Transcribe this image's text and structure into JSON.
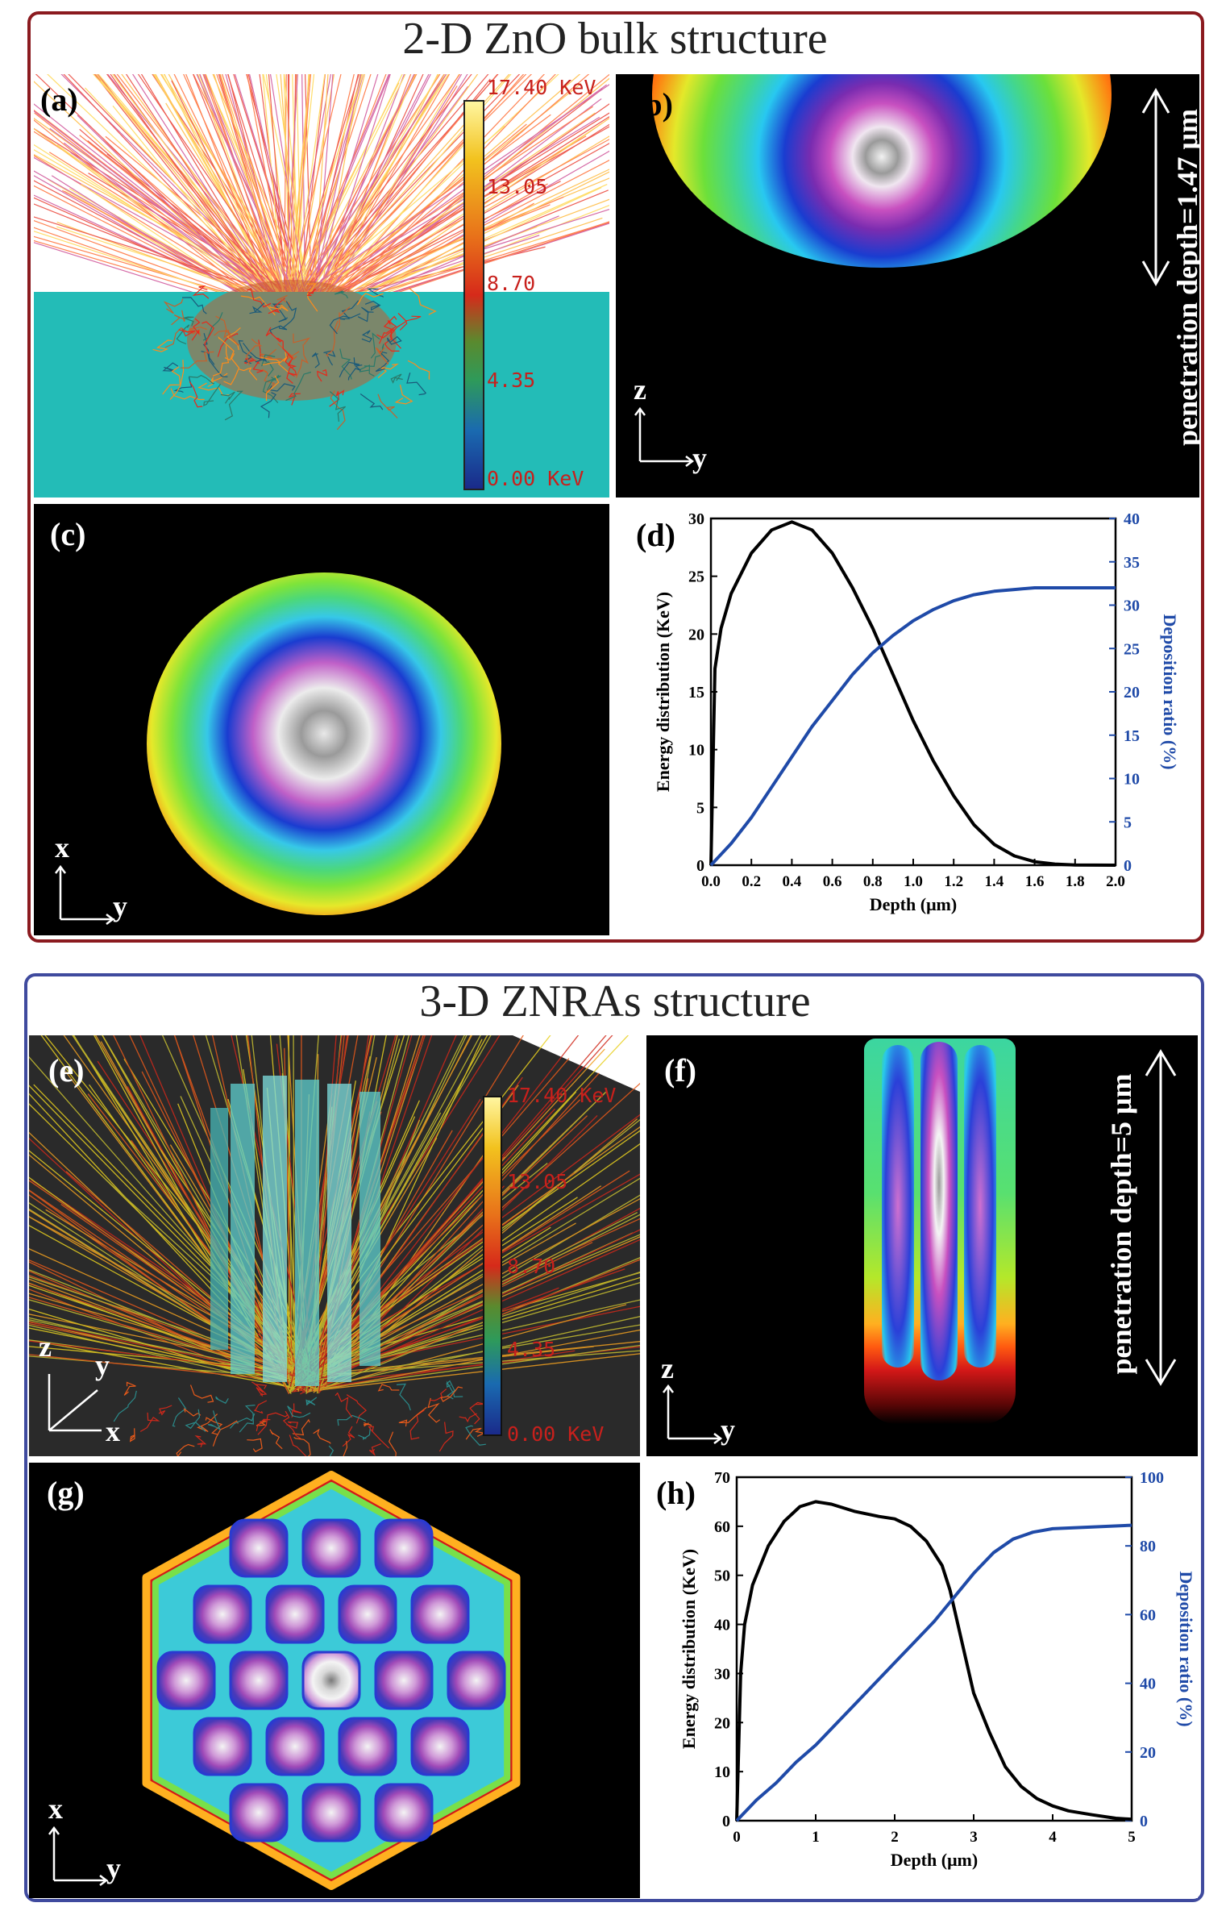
{
  "top": {
    "title": "2-D ZnO bulk structure",
    "frame_color": "#8b1a1f",
    "panels": {
      "a": "(a)",
      "b": "(b)",
      "c": "(c)",
      "d": "(d)"
    },
    "colorbar": [
      "17.40 KeV",
      "13.05",
      "8.70",
      "4.35",
      "0.00 KeV"
    ],
    "penetration": "penetration depth=1.47 μm",
    "axes": {
      "z": "z",
      "y": "y",
      "x": "x"
    }
  },
  "bottom": {
    "title": "3-D ZNRAs structure",
    "frame_color": "#3f4a9e",
    "panels": {
      "e": "(e)",
      "f": "(f)",
      "g": "(g)",
      "h": "(h)"
    },
    "colorbar": [
      "17.40 KeV",
      "13.05",
      "8.70",
      "4.35",
      "0.00 KeV"
    ],
    "penetration": "penetration depth=5 μm",
    "axes": {
      "z": "z",
      "y": "y",
      "x": "x"
    }
  },
  "chart_data": [
    {
      "id": "d",
      "type": "line",
      "xlabel": "Depth (μm)",
      "ylabel": "Energy distribution (KeV)",
      "y2label": "Deposition ratio (%)",
      "xlim": [
        0,
        2.0
      ],
      "ylim": [
        0,
        30
      ],
      "y2lim": [
        0,
        40
      ],
      "xticks": [
        0.0,
        0.2,
        0.4,
        0.6,
        0.8,
        1.0,
        1.2,
        1.4,
        1.6,
        1.8,
        2.0
      ],
      "yticks": [
        0,
        5,
        10,
        15,
        20,
        25,
        30
      ],
      "y2ticks": [
        0,
        5,
        10,
        15,
        20,
        25,
        30,
        35,
        40
      ],
      "series": [
        {
          "name": "Energy distribution",
          "axis": "left",
          "color": "#000000",
          "x": [
            0,
            0.02,
            0.05,
            0.1,
            0.2,
            0.3,
            0.4,
            0.5,
            0.6,
            0.7,
            0.8,
            0.9,
            1.0,
            1.1,
            1.2,
            1.3,
            1.4,
            1.5,
            1.6,
            1.7,
            1.8,
            2.0
          ],
          "y": [
            0,
            17,
            20.5,
            23.5,
            27,
            29,
            29.7,
            29,
            27,
            24,
            20.5,
            16.5,
            12.5,
            9,
            6,
            3.5,
            1.8,
            0.8,
            0.3,
            0.1,
            0.02,
            0
          ]
        },
        {
          "name": "Deposition ratio",
          "axis": "right",
          "color": "#1f4aa8",
          "x": [
            0,
            0.1,
            0.2,
            0.3,
            0.4,
            0.5,
            0.6,
            0.7,
            0.8,
            0.9,
            1.0,
            1.1,
            1.2,
            1.3,
            1.4,
            1.5,
            1.6,
            1.7,
            1.8,
            1.9,
            2.0
          ],
          "y": [
            0,
            2.5,
            5.5,
            9,
            12.5,
            16,
            19,
            22,
            24.5,
            26.5,
            28.2,
            29.5,
            30.5,
            31.2,
            31.6,
            31.8,
            32,
            32,
            32,
            32,
            32
          ]
        }
      ]
    },
    {
      "id": "h",
      "type": "line",
      "xlabel": "Depth (μm)",
      "ylabel": "Energy distribution (KeV)",
      "y2label": "Deposition ratio (%)",
      "xlim": [
        0,
        5
      ],
      "ylim": [
        0,
        70
      ],
      "y2lim": [
        0,
        100
      ],
      "xticks": [
        0,
        1,
        2,
        3,
        4,
        5
      ],
      "yticks": [
        0,
        10,
        20,
        30,
        40,
        50,
        60,
        70
      ],
      "y2ticks": [
        0,
        20,
        40,
        60,
        80,
        100
      ],
      "series": [
        {
          "name": "Energy distribution",
          "axis": "left",
          "color": "#000000",
          "x": [
            0,
            0.05,
            0.1,
            0.2,
            0.4,
            0.6,
            0.8,
            1.0,
            1.2,
            1.5,
            1.8,
            2.0,
            2.2,
            2.4,
            2.6,
            2.7,
            2.8,
            2.9,
            3.0,
            3.2,
            3.4,
            3.6,
            3.8,
            4.0,
            4.2,
            4.5,
            4.8,
            5.0
          ],
          "y": [
            0,
            30,
            40,
            48,
            56,
            61,
            64,
            65,
            64.5,
            63,
            62,
            61.5,
            60,
            57,
            52,
            47,
            40,
            33,
            26,
            18,
            11,
            7,
            4.5,
            3,
            2,
            1.2,
            0.5,
            0.3
          ]
        },
        {
          "name": "Deposition ratio",
          "axis": "right",
          "color": "#1f4aa8",
          "x": [
            0,
            0.25,
            0.5,
            0.75,
            1.0,
            1.25,
            1.5,
            1.75,
            2.0,
            2.25,
            2.5,
            2.75,
            3.0,
            3.25,
            3.5,
            3.75,
            4.0,
            4.5,
            5.0
          ],
          "y": [
            0,
            6,
            11,
            17,
            22,
            28,
            34,
            40,
            46,
            52,
            58,
            65,
            72,
            78,
            82,
            84,
            85,
            85.5,
            86
          ]
        }
      ]
    }
  ]
}
